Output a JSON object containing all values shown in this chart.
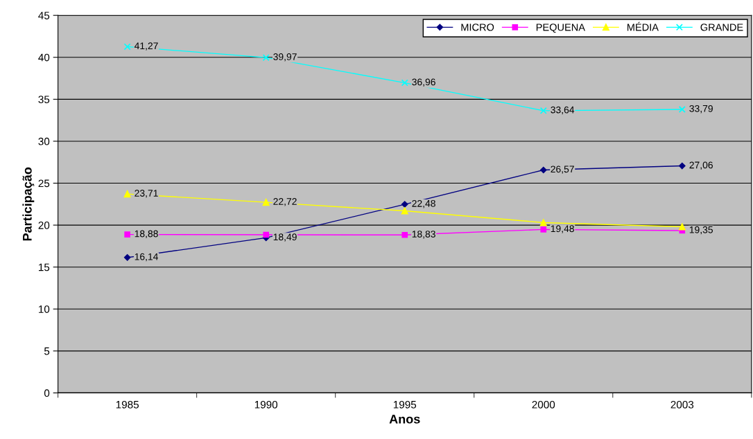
{
  "chart_data": {
    "type": "line",
    "xlabel": "Anos",
    "ylabel": "Participação",
    "categories": [
      "1985",
      "1990",
      "1995",
      "2000",
      "2003"
    ],
    "ylim": [
      0,
      45
    ],
    "yticks": [
      0,
      5,
      10,
      15,
      20,
      25,
      30,
      35,
      40,
      45
    ],
    "grid": "y",
    "legend": "top right",
    "series": [
      {
        "name": "MICRO",
        "color": "#000080",
        "marker": "diamond",
        "values": [
          16.14,
          18.49,
          22.48,
          26.57,
          27.06
        ],
        "value_labels": [
          "16,14",
          "18,49",
          "22,48",
          "26,57",
          "27,06"
        ]
      },
      {
        "name": "PEQUENA",
        "color": "#ff00ff",
        "marker": "square",
        "values": [
          18.88,
          18.85,
          18.83,
          19.48,
          19.35
        ],
        "value_labels": [
          "18,88",
          null,
          "18,83",
          "19,48",
          "19,35"
        ]
      },
      {
        "name": "MÉDIA",
        "color": "#ffff00",
        "marker": "triangle",
        "values": [
          23.71,
          22.72,
          21.7,
          20.3,
          19.8
        ],
        "value_labels": [
          "23,71",
          "22,72",
          null,
          null,
          null
        ]
      },
      {
        "name": "GRANDE",
        "color": "#00ffff",
        "marker": "cross",
        "values": [
          41.27,
          39.97,
          36.96,
          33.64,
          33.79
        ],
        "value_labels": [
          "41,27",
          "39,97",
          "36,96",
          "33,64",
          "33,79"
        ]
      }
    ]
  }
}
